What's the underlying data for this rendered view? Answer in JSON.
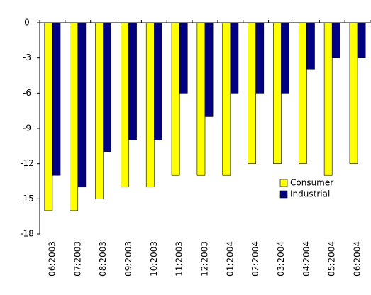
{
  "chart_data": {
    "type": "bar",
    "categories": [
      "06:2003",
      "07:2003",
      "08:2003",
      "09:2003",
      "10:2003",
      "11:2003",
      "12:2003",
      "01:2004",
      "02:2004",
      "03:2004",
      "04:2004",
      "05:2004",
      "06:2004"
    ],
    "series": [
      {
        "name": "Consumer",
        "color": "#ffff00",
        "values": [
          -16,
          -16,
          -15,
          -14,
          -14,
          -13,
          -13,
          -13,
          -12,
          -12,
          -12,
          -13,
          -12
        ]
      },
      {
        "name": "Industrial",
        "color": "#000080",
        "values": [
          -13,
          -14,
          -11,
          -10,
          -10,
          -6,
          -8,
          -6,
          -6,
          -6,
          -4,
          -3,
          -3
        ]
      }
    ],
    "ylim": [
      -18,
      0
    ],
    "yticks": [
      0,
      -3,
      -6,
      -9,
      -12,
      -15,
      -18
    ],
    "legend": "lower right"
  }
}
